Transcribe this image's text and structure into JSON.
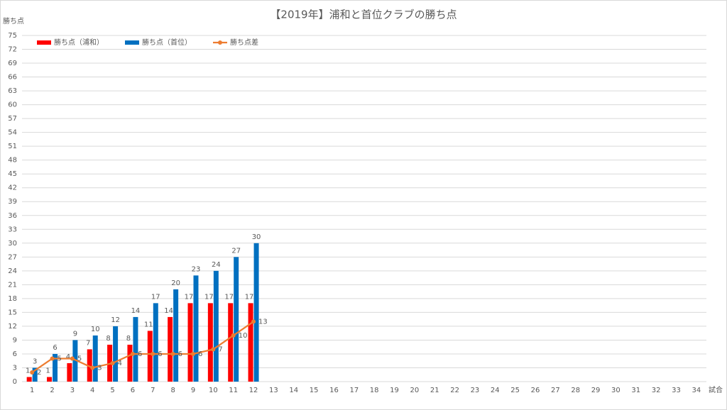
{
  "chart_data": {
    "type": "bar",
    "title": "【2019年】浦和と首位クラブの勝ち点",
    "y_label": "勝ち点",
    "x_label": "試合",
    "categories": [
      1,
      2,
      3,
      4,
      5,
      6,
      7,
      8,
      9,
      10,
      11,
      12,
      13,
      14,
      15,
      16,
      17,
      18,
      19,
      20,
      21,
      22,
      23,
      24,
      25,
      26,
      27,
      28,
      29,
      30,
      31,
      32,
      33,
      34
    ],
    "series": [
      {
        "name": "勝ち点（浦和）",
        "type": "bar",
        "color": "#ff0000",
        "values": [
          1,
          1,
          4,
          7,
          8,
          8,
          11,
          14,
          17,
          17,
          17,
          17,
          null,
          null,
          null,
          null,
          null,
          null,
          null,
          null,
          null,
          null,
          null,
          null,
          null,
          null,
          null,
          null,
          null,
          null,
          null,
          null,
          null,
          null
        ]
      },
      {
        "name": "勝ち点（首位）",
        "type": "bar",
        "color": "#0070c0",
        "values": [
          3,
          6,
          9,
          10,
          12,
          14,
          17,
          20,
          23,
          24,
          27,
          30,
          null,
          null,
          null,
          null,
          null,
          null,
          null,
          null,
          null,
          null,
          null,
          null,
          null,
          null,
          null,
          null,
          null,
          null,
          null,
          null,
          null,
          null
        ]
      },
      {
        "name": "勝ち点差",
        "type": "line",
        "color": "#ed7d31",
        "values": [
          2,
          5,
          5,
          3,
          4,
          6,
          6,
          6,
          6,
          7,
          10,
          13,
          null,
          null,
          null,
          null,
          null,
          null,
          null,
          null,
          null,
          null,
          null,
          null,
          null,
          null,
          null,
          null,
          null,
          null,
          null,
          null,
          null,
          null
        ]
      }
    ],
    "ylim": [
      0,
      75
    ],
    "yticks": [
      0,
      3,
      6,
      9,
      12,
      15,
      18,
      21,
      24,
      27,
      30,
      33,
      36,
      39,
      42,
      45,
      48,
      51,
      54,
      57,
      60,
      63,
      66,
      69,
      72,
      75
    ],
    "grid": true,
    "legend": "top-left"
  }
}
